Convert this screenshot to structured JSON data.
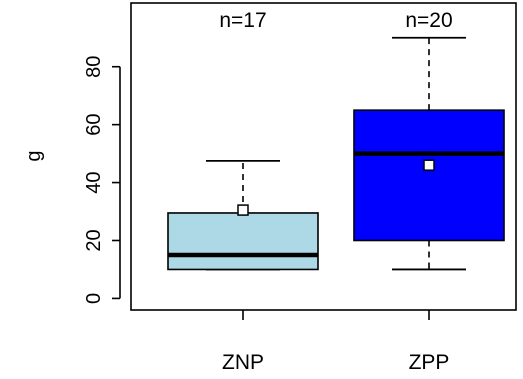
{
  "chart_data": {
    "type": "boxplot",
    "ylabel": "g",
    "ylim": [
      -4,
      102
    ],
    "y_ticks": [
      0,
      20,
      40,
      60,
      80
    ],
    "y_tick_labels": [
      "0",
      "20",
      "40",
      "60",
      "80"
    ],
    "categories": [
      "ZNP",
      "ZPP"
    ],
    "groups": [
      {
        "category": "ZNP",
        "n_label": "n=17",
        "whisker_low": 10,
        "q1": 10,
        "median": 15,
        "q3": 29.5,
        "whisker_high": 47.5,
        "mean": 30.5,
        "color": "#add8e6"
      },
      {
        "category": "ZPP",
        "n_label": "n=20",
        "whisker_low": 10,
        "q1": 20,
        "median": 50,
        "q3": 65,
        "whisker_high": 90,
        "mean": 46,
        "color": "#0000ff"
      }
    ]
  }
}
